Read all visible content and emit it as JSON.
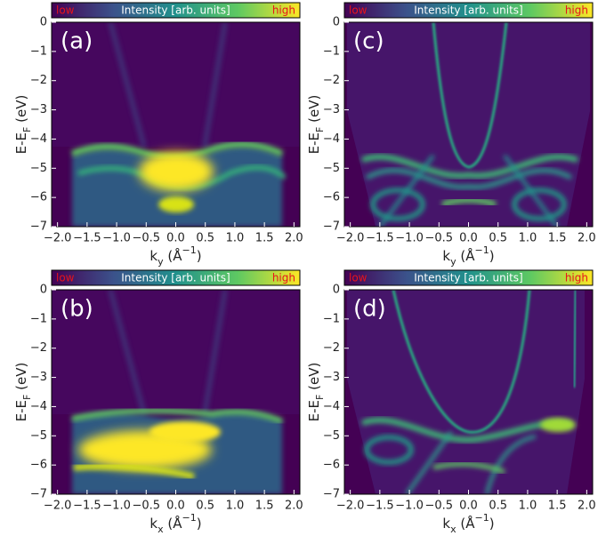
{
  "chart_data": [
    {
      "type": "heatmap",
      "panel_label": "(a)",
      "colorbar": {
        "low": "low",
        "label": "Intensity [arb. units]",
        "high": "high"
      },
      "xlabel": [
        "k",
        "y",
        " (Å",
        "−1",
        ")"
      ],
      "ylabel": [
        "E-E",
        "F",
        " (eV)"
      ],
      "xlim": [
        -2.1,
        2.1
      ],
      "ylim": [
        -7,
        0
      ],
      "xticks": [
        {
          "value": -2.0,
          "label": "−2.0"
        },
        {
          "value": -1.5,
          "label": "−1.5"
        },
        {
          "value": -1.0,
          "label": "−1.0"
        },
        {
          "value": -0.5,
          "label": "−0.5"
        },
        {
          "value": 0.0,
          "label": "0.0"
        },
        0.5,
        {
          "value": 1.0,
          "label": "1.0"
        },
        1.5,
        {
          "value": 2.0,
          "label": "2.0"
        }
      ],
      "yticks": [
        {
          "value": -7,
          "label": "−7"
        },
        {
          "value": -6,
          "label": "−6"
        },
        {
          "value": -5,
          "label": "−5"
        },
        {
          "value": -4,
          "label": "−4"
        },
        {
          "value": -3,
          "label": "−3"
        },
        {
          "value": -2,
          "label": "−2"
        },
        {
          "value": -1,
          "label": "−1"
        },
        0
      ]
    },
    {
      "type": "heatmap",
      "panel_label": "(b)",
      "colorbar": {
        "low": "low",
        "label": "Intensity [arb. units]",
        "high": "high"
      },
      "xlabel": [
        "k",
        "x",
        " (Å",
        "−1",
        ")"
      ],
      "ylabel": [
        "E-E",
        "F",
        " (eV)"
      ],
      "xlim": [
        -2.1,
        2.1
      ],
      "ylim": [
        -7,
        0
      ],
      "xticks": [
        {
          "value": -2.0,
          "label": "−2.0"
        },
        {
          "value": -1.5,
          "label": "−1.5"
        },
        {
          "value": -1.0,
          "label": "−1.0"
        },
        {
          "value": -0.5,
          "label": "−0.5"
        },
        {
          "value": 0.0,
          "label": "0.0"
        },
        0.5,
        {
          "value": 1.0,
          "label": "1.0"
        },
        1.5,
        {
          "value": 2.0,
          "label": "2.0"
        }
      ],
      "yticks": [
        {
          "value": -7,
          "label": "−7"
        },
        {
          "value": -6,
          "label": "−6"
        },
        {
          "value": -5,
          "label": "−5"
        },
        {
          "value": -4,
          "label": "−4"
        },
        {
          "value": -3,
          "label": "−3"
        },
        {
          "value": -2,
          "label": "−2"
        },
        {
          "value": -1,
          "label": "−1"
        },
        0
      ]
    },
    {
      "type": "heatmap",
      "panel_label": "(c)",
      "colorbar": {
        "low": "low",
        "label": "Intensity [arb. units]",
        "high": "high"
      },
      "xlabel": [
        "k",
        "y",
        " (Å",
        "−1",
        ")"
      ],
      "ylabel": [
        "E-E",
        "F",
        " (eV)"
      ],
      "xlim": [
        -2.1,
        2.1
      ],
      "ylim": [
        -7,
        0
      ],
      "xticks": [
        {
          "value": -2.0,
          "label": "−2.0"
        },
        {
          "value": -1.5,
          "label": "−1.5"
        },
        {
          "value": -1.0,
          "label": "−1.0"
        },
        {
          "value": -0.5,
          "label": "−0.5"
        },
        {
          "value": 0.0,
          "label": "0.0"
        },
        0.5,
        {
          "value": 1.0,
          "label": "1.0"
        },
        1.5,
        {
          "value": 2.0,
          "label": "2.0"
        }
      ],
      "yticks": [
        {
          "value": -7,
          "label": "−7"
        },
        {
          "value": -6,
          "label": "−6"
        },
        {
          "value": -5,
          "label": "−5"
        },
        {
          "value": -4,
          "label": "−4"
        },
        {
          "value": -3,
          "label": "−3"
        },
        {
          "value": -2,
          "label": "−2"
        },
        {
          "value": -1,
          "label": "−1"
        },
        0
      ]
    },
    {
      "type": "heatmap",
      "panel_label": "(d)",
      "colorbar": {
        "low": "low",
        "label": "Intensity [arb. units]",
        "high": "high"
      },
      "xlabel": [
        "k",
        "x",
        " (Å",
        "−1",
        ")"
      ],
      "ylabel": [
        "E-E",
        "F",
        " (eV)"
      ],
      "xlim": [
        -2.1,
        2.1
      ],
      "ylim": [
        -7,
        0
      ],
      "xticks": [
        {
          "value": -2.0,
          "label": "−2.0"
        },
        {
          "value": -1.5,
          "label": "−1.5"
        },
        {
          "value": -1.0,
          "label": "−1.0"
        },
        {
          "value": -0.5,
          "label": "−0.5"
        },
        {
          "value": 0.0,
          "label": "0.0"
        },
        0.5,
        {
          "value": 1.0,
          "label": "1.0"
        },
        1.5,
        {
          "value": 2.0,
          "label": "2.0"
        }
      ],
      "yticks": [
        {
          "value": -7,
          "label": "−7"
        },
        {
          "value": -6,
          "label": "−6"
        },
        {
          "value": -5,
          "label": "−5"
        },
        {
          "value": -4,
          "label": "−4"
        },
        {
          "value": -3,
          "label": "−3"
        },
        {
          "value": -2,
          "label": "−2"
        },
        {
          "value": -1,
          "label": "−1"
        },
        0
      ]
    }
  ]
}
